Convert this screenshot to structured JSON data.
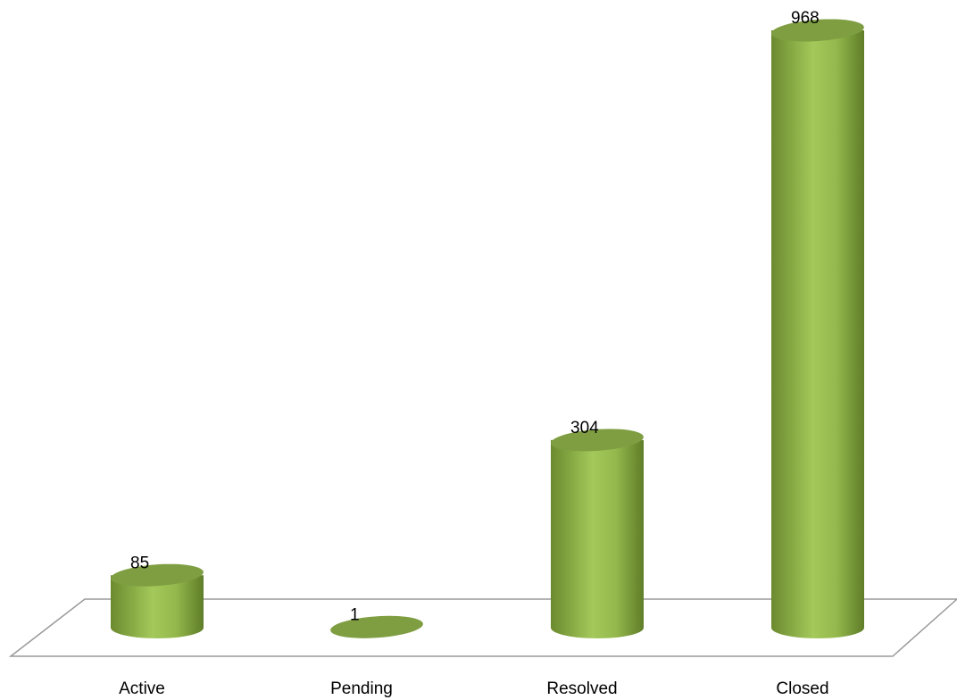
{
  "chart_data": {
    "type": "bar",
    "style": "3d-cylinder",
    "categories": [
      "Active",
      "Pending",
      "Resolved",
      "Closed"
    ],
    "values": [
      85,
      1,
      304,
      968
    ],
    "show_data_labels": true,
    "title": "",
    "xlabel": "",
    "ylabel": "",
    "ylim": [
      0,
      968
    ],
    "grid": false,
    "legend": "none",
    "colors": {
      "bar_light": "#a4c95a",
      "bar_mid": "#8cb046",
      "bar_dark": "#6b8a2f",
      "bar_top": "#7f9e42",
      "floor_stroke": "#9a9a9a"
    }
  }
}
